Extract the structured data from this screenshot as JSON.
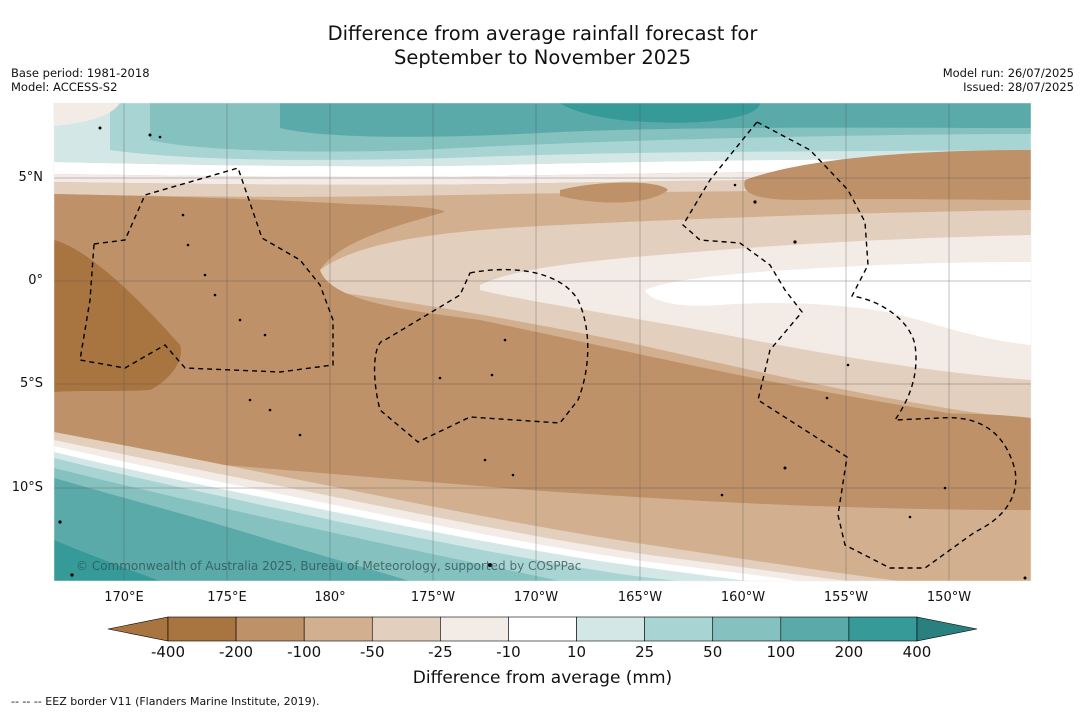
{
  "title": {
    "line1": "Difference from average rainfall forecast for",
    "line2": "September to November 2025"
  },
  "meta": {
    "base_period": "Base period: 1981-2018",
    "model": "Model: ACCESS-S2",
    "model_run": "Model run: 26/07/2025",
    "issued": "Issued: 28/07/2025"
  },
  "map": {
    "lat_labels": [
      "5°N",
      "0°",
      "5°S",
      "10°S"
    ],
    "lon_labels": [
      "170°E",
      "175°E",
      "180°",
      "175°W",
      "170°W",
      "165°W",
      "160°W",
      "155°W",
      "150°W"
    ],
    "copyright": "© Commonwealth of Australia 2025, Bureau of Meteorology, supported by COSPPac"
  },
  "legend": {
    "ticks": [
      "-400",
      "-200",
      "-100",
      "-50",
      "-25",
      "-10",
      "10",
      "25",
      "50",
      "100",
      "200",
      "400"
    ],
    "colors": [
      "#a8743f",
      "#be9168",
      "#d2b08f",
      "#e3cfbd",
      "#f3ebe5",
      "#ffffff",
      "#d2e7e6",
      "#a8d5d3",
      "#84c1bf",
      "#5aaaa9",
      "#369b98",
      "#2a807e"
    ],
    "label": "Difference from average (mm)"
  },
  "footnote": "--  --  -- EEZ border V11 (Flanders Marine Institute, 2019)."
}
